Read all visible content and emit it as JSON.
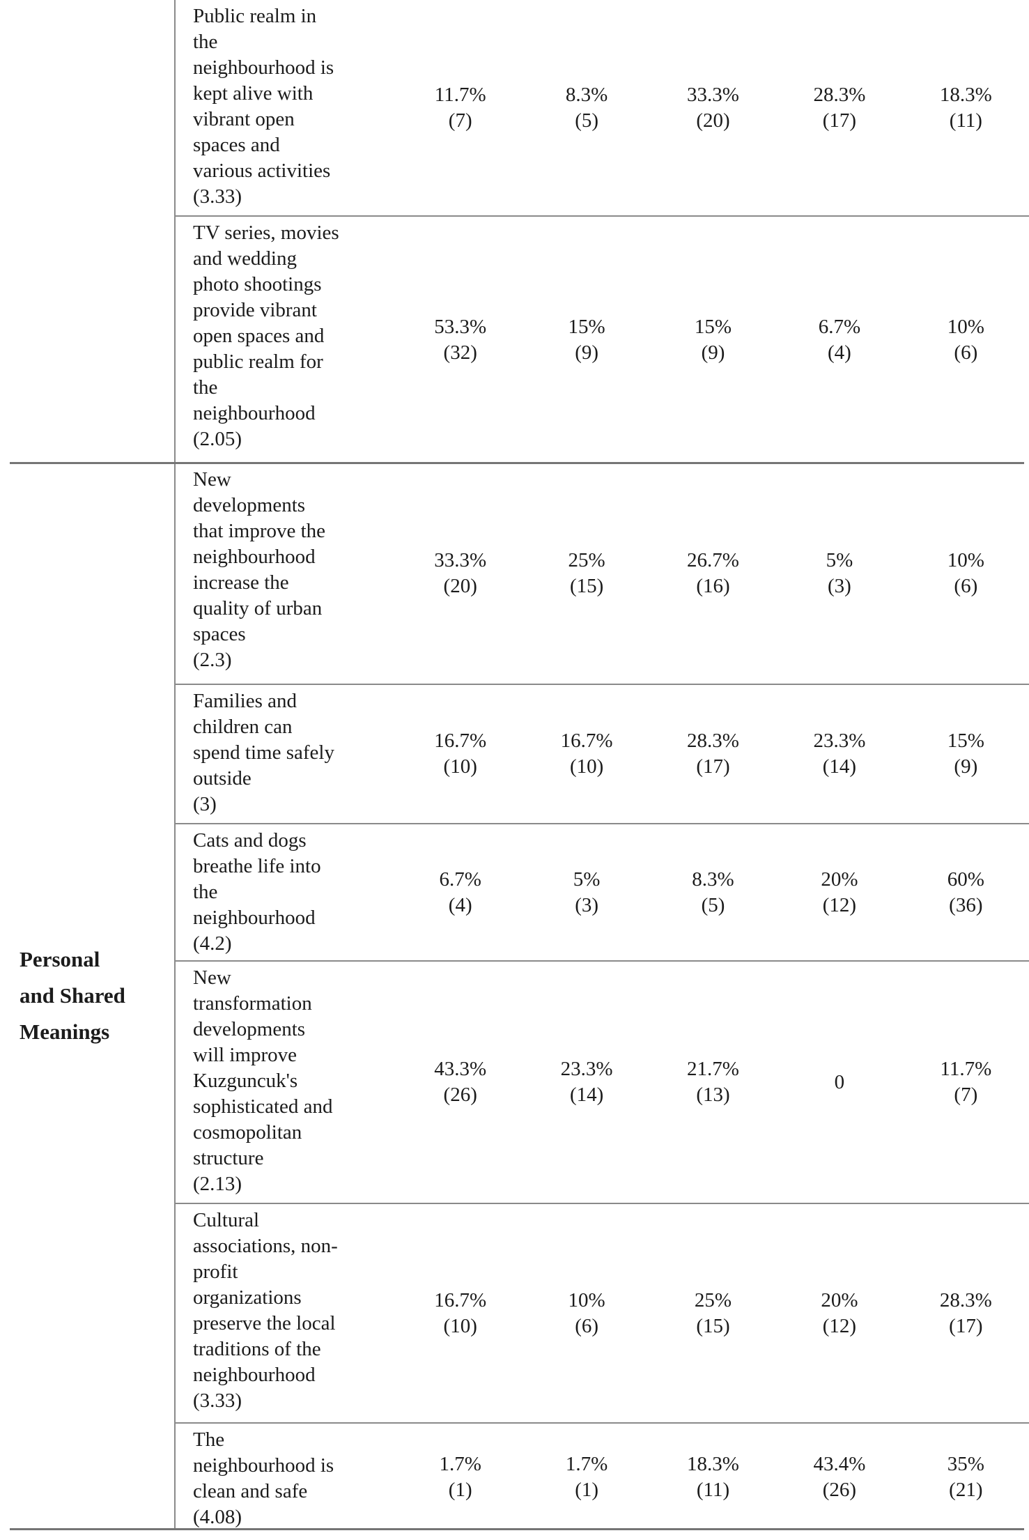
{
  "section": {
    "label": "Personal\nand Shared\nMeanings"
  },
  "table": {
    "rows": [
      {
        "statement": "Public realm in\nthe\nneighbourhood is\nkept alive with\nvibrant open\nspaces and\nvarious activities\n(3.33)",
        "values": [
          "11.7%\n(7)",
          "8.3%\n(5)",
          "33.3%\n(20)",
          "28.3%\n(17)",
          "18.3%\n(11)"
        ]
      },
      {
        "statement": "TV series, movies\nand wedding\nphoto shootings\nprovide vibrant\nopen spaces and\npublic realm for\nthe\nneighbourhood\n(2.05)",
        "values": [
          "53.3%\n(32)",
          "15%\n(9)",
          "15%\n(9)",
          "6.7%\n(4)",
          "10%\n(6)"
        ]
      },
      {
        "statement": "New\ndevelopments\nthat improve the\nneighbourhood\nincrease the\nquality of urban\nspaces\n(2.3)",
        "values": [
          "33.3%\n(20)",
          "25%\n(15)",
          "26.7%\n(16)",
          "5%\n(3)",
          "10%\n(6)"
        ]
      },
      {
        "statement": "Families and\nchildren can\nspend time safely\noutside\n(3)",
        "values": [
          "16.7%\n(10)",
          "16.7%\n(10)",
          "28.3%\n(17)",
          "23.3%\n(14)",
          "15%\n(9)"
        ]
      },
      {
        "statement": "Cats and dogs\nbreathe life into\nthe\nneighbourhood\n(4.2)",
        "values": [
          "6.7%\n(4)",
          "5%\n(3)",
          "8.3%\n(5)",
          "20%\n(12)",
          "60%\n(36)"
        ]
      },
      {
        "statement": "New\ntransformation\ndevelopments\nwill improve\nKuzguncuk's\nsophisticated and\ncosmopolitan\nstructure\n(2.13)",
        "values": [
          "43.3%\n(26)",
          "23.3%\n(14)",
          "21.7%\n(13)",
          "0",
          "11.7%\n(7)"
        ]
      },
      {
        "statement": "Cultural\nassociations, non-\nprofit\norganizations\npreserve the local\ntraditions of the\nneighbourhood\n(3.33)",
        "values": [
          "16.7%\n(10)",
          "10%\n(6)",
          "25%\n(15)",
          "20%\n(12)",
          "28.3%\n(17)"
        ]
      },
      {
        "statement": "The\nneighbourhood is\nclean and safe\n(4.08)",
        "values": [
          "1.7%\n(1)",
          "1.7%\n(1)",
          "18.3%\n(11)",
          "43.4%\n(26)",
          "35%\n(21)"
        ]
      }
    ]
  }
}
